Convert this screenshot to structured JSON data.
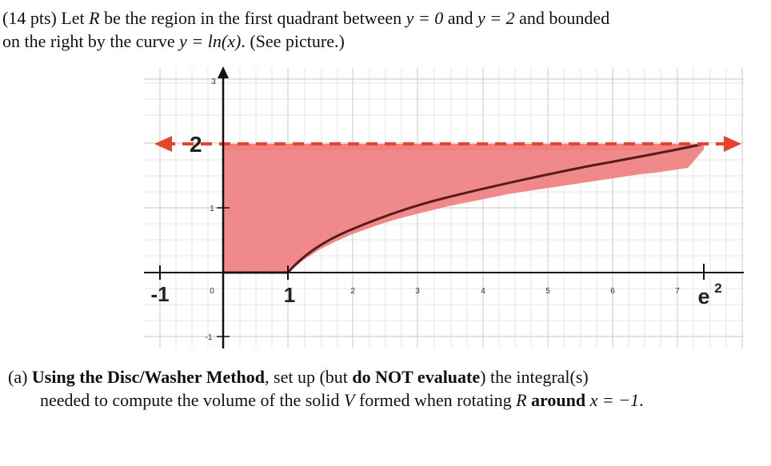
{
  "header": {
    "points": "(14 pts)",
    "text_1": " Let ",
    "R": "R",
    "text_2": " be the region in the first quadrant between ",
    "eq_y0": "y = 0",
    "text_3": " and ",
    "eq_y2": "y = 2",
    "text_4": " and bounded",
    "text_5": "on the right by the curve ",
    "eq_curve": "y = ln(x)",
    "text_6": ". (See picture.)"
  },
  "figure": {
    "small_ticks": {
      "y_top": "3",
      "y_one": "1",
      "y_neg_one": "-1",
      "x_zero": "0",
      "x_2": "2",
      "x_3": "3",
      "x_4": "4",
      "x_5": "5",
      "x_6": "6",
      "x_7": "7"
    },
    "big_labels": {
      "y_two": "2",
      "x_neg_one": "-1",
      "x_one": "1",
      "x_e_base": "e",
      "x_e_exp": "2"
    },
    "colors": {
      "region_fill": "#ef8080",
      "dashed_line": "#e8442c",
      "curve": "#5a1a1a",
      "axis": "#111111",
      "grid": "#d4d4d4"
    }
  },
  "part_a": {
    "label": "(a)",
    "bold_1": "Using the Disc/Washer Method",
    "text_1": ", set up (but ",
    "bold_2": "do NOT evaluate",
    "text_2": ") the integral(s)",
    "text_3": "needed to compute the volume of the solid ",
    "V": "V",
    "text_4": " formed when rotating ",
    "R": "R",
    "bold_3": "around",
    "eq_axis": "x = −1",
    "text_5": "."
  }
}
